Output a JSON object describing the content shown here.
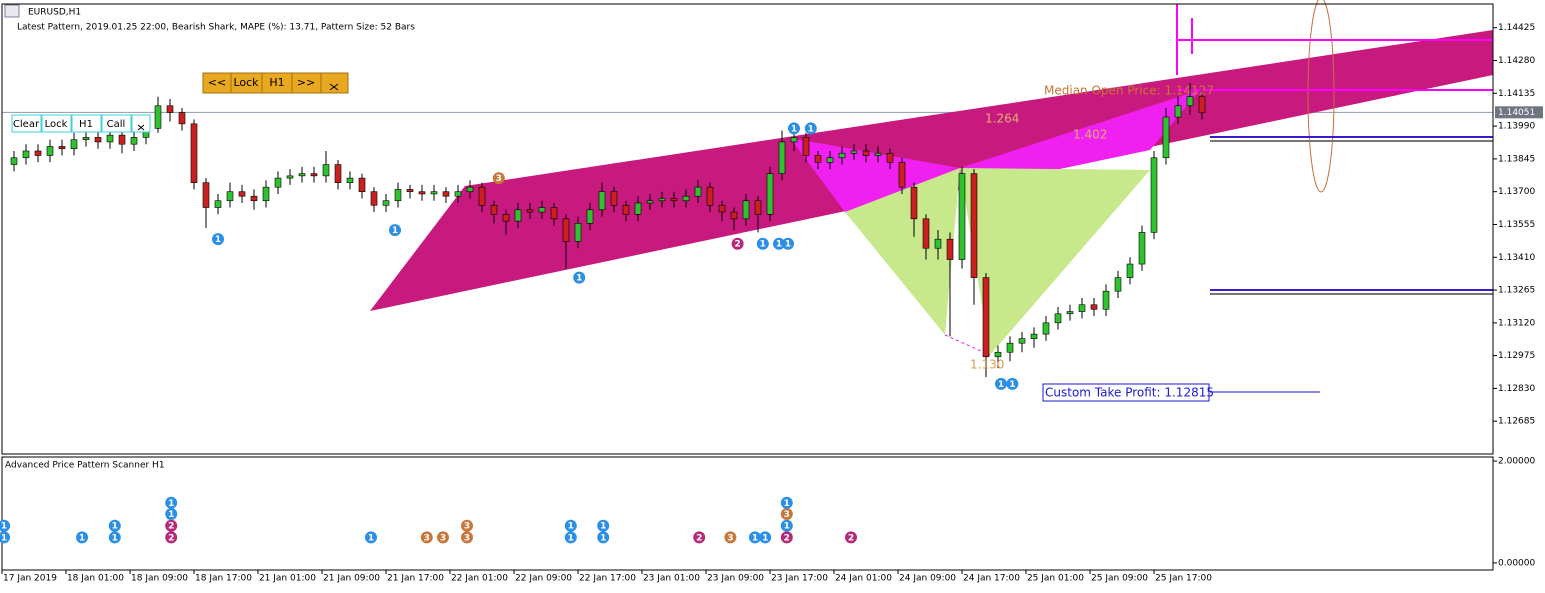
{
  "chart_data": {
    "type": "candlestick",
    "title": "EURUSD,H1",
    "subtitle": "Latest Pattern, 2019.01.25 22:00, Bearish Shark, MAPE (%): 13.71, Pattern Size: 52 Bars",
    "open": [
      1.1382,
      1.1385,
      1.1388,
      1.1386,
      1.139,
      1.1389,
      1.1393,
      1.1394,
      1.1392,
      1.1395,
      1.1391,
      1.1394,
      1.1398,
      1.1408,
      1.1405,
      1.14,
      1.1374,
      1.1363,
      1.1366,
      1.137,
      1.1368,
      1.1366,
      1.1372,
      1.1376,
      1.1377,
      1.1378,
      1.1377,
      1.1382,
      1.1374,
      1.1376,
      1.137,
      1.1364,
      1.1366,
      1.1371,
      1.137,
      1.1369,
      1.137,
      1.1368,
      1.137,
      1.1372,
      1.1364,
      1.136,
      1.1357,
      1.1362,
      1.1361,
      1.1363,
      1.1358,
      1.1348,
      1.1356,
      1.1362,
      1.137,
      1.1364,
      1.136,
      1.1365,
      1.1366,
      1.1367,
      1.1366,
      1.1368,
      1.1372,
      1.1364,
      1.1361,
      1.1358,
      1.1366,
      1.136,
      1.1378,
      1.1392,
      1.1394,
      1.1386,
      1.1383,
      1.1385,
      1.1387,
      1.1388,
      1.1386,
      1.1387,
      1.1383,
      1.1372,
      1.1358,
      1.1345,
      1.1349,
      1.134,
      1.1378,
      1.1332,
      1.1297,
      1.1299,
      1.1303,
      1.1305,
      1.1307,
      1.1312,
      1.1316,
      1.1317,
      1.132,
      1.1318,
      1.1326,
      1.1332,
      1.1338,
      1.1352,
      1.1385,
      1.1403,
      1.1408,
      1.1412
    ],
    "high": [
      1.1388,
      1.1391,
      1.1391,
      1.1393,
      1.1393,
      1.1396,
      1.1397,
      1.1397,
      1.1398,
      1.1398,
      1.1397,
      1.1402,
      1.1412,
      1.1411,
      1.1407,
      1.1402,
      1.1376,
      1.1369,
      1.1374,
      1.1373,
      1.1371,
      1.1375,
      1.1379,
      1.138,
      1.1381,
      1.1381,
      1.1388,
      1.1384,
      1.1379,
      1.1378,
      1.1372,
      1.1369,
      1.1374,
      1.1373,
      1.1373,
      1.1373,
      1.1372,
      1.1373,
      1.1375,
      1.1374,
      1.1366,
      1.1362,
      1.1365,
      1.1365,
      1.1366,
      1.1365,
      1.136,
      1.1359,
      1.1365,
      1.1374,
      1.1372,
      1.1366,
      1.1368,
      1.1369,
      1.137,
      1.137,
      1.1371,
      1.1375,
      1.1374,
      1.1366,
      1.1363,
      1.1369,
      1.1368,
      1.1381,
      1.1397,
      1.1397,
      1.1396,
      1.1388,
      1.1388,
      1.139,
      1.1391,
      1.1391,
      1.139,
      1.1389,
      1.1385,
      1.1374,
      1.136,
      1.1353,
      1.1352,
      1.1381,
      1.138,
      1.1334,
      1.1302,
      1.1306,
      1.1308,
      1.131,
      1.1315,
      1.1319,
      1.132,
      1.1323,
      1.1323,
      1.1329,
      1.1335,
      1.1341,
      1.1355,
      1.1388,
      1.1407,
      1.1412,
      1.1418,
      1.1415
    ],
    "low": [
      1.1379,
      1.1382,
      1.1383,
      1.1383,
      1.1386,
      1.1386,
      1.139,
      1.1389,
      1.1389,
      1.1387,
      1.1388,
      1.1391,
      1.1396,
      1.1401,
      1.1397,
      1.1371,
      1.1354,
      1.136,
      1.1363,
      1.1365,
      1.1362,
      1.1363,
      1.1369,
      1.1373,
      1.1374,
      1.1374,
      1.1374,
      1.1371,
      1.1371,
      1.1367,
      1.1361,
      1.1361,
      1.1363,
      1.1367,
      1.1366,
      1.1366,
      1.1365,
      1.1365,
      1.1367,
      1.1361,
      1.1356,
      1.1351,
      1.1354,
      1.1358,
      1.1358,
      1.1355,
      1.1336,
      1.1345,
      1.1353,
      1.1359,
      1.1361,
      1.1357,
      1.1357,
      1.1362,
      1.1363,
      1.1363,
      1.1363,
      1.1365,
      1.1361,
      1.1357,
      1.1353,
      1.1355,
      1.1352,
      1.1357,
      1.1375,
      1.1388,
      1.1383,
      1.138,
      1.138,
      1.1382,
      1.1384,
      1.1383,
      1.1383,
      1.138,
      1.1369,
      1.135,
      1.134,
      1.134,
      1.1306,
      1.1336,
      1.132,
      1.1288,
      1.1292,
      1.1295,
      1.1299,
      1.1301,
      1.1304,
      1.1309,
      1.1313,
      1.1314,
      1.1315,
      1.1315,
      1.1323,
      1.1329,
      1.1335,
      1.1349,
      1.1382,
      1.14,
      1.1404,
      1.1402
    ],
    "close": [
      1.1385,
      1.1388,
      1.1386,
      1.139,
      1.1389,
      1.1393,
      1.1394,
      1.1392,
      1.1395,
      1.1391,
      1.1394,
      1.1398,
      1.1408,
      1.1405,
      1.14,
      1.1374,
      1.1363,
      1.1366,
      1.137,
      1.1368,
      1.1366,
      1.1372,
      1.1376,
      1.1377,
      1.1378,
      1.1377,
      1.1382,
      1.1374,
      1.1376,
      1.137,
      1.1364,
      1.1366,
      1.1371,
      1.137,
      1.1369,
      1.137,
      1.1368,
      1.137,
      1.1372,
      1.1364,
      1.136,
      1.1357,
      1.1362,
      1.1361,
      1.1363,
      1.1358,
      1.1348,
      1.1356,
      1.1362,
      1.137,
      1.1364,
      1.136,
      1.1365,
      1.1366,
      1.1367,
      1.1366,
      1.1368,
      1.1372,
      1.1364,
      1.1361,
      1.1358,
      1.1366,
      1.136,
      1.1378,
      1.1392,
      1.1394,
      1.1386,
      1.1383,
      1.1385,
      1.1387,
      1.1388,
      1.1386,
      1.1387,
      1.1383,
      1.1372,
      1.1358,
      1.1345,
      1.1349,
      1.134,
      1.1378,
      1.1332,
      1.1297,
      1.1299,
      1.1303,
      1.1305,
      1.1307,
      1.1312,
      1.1316,
      1.1317,
      1.132,
      1.1318,
      1.1326,
      1.1332,
      1.1338,
      1.1352,
      1.1385,
      1.1403,
      1.1408,
      1.1412,
      1.1405
    ],
    "up_color": "#2fc22f",
    "down_color": "#cc1f1f",
    "xlim": [
      0,
      124.25
    ],
    "xticks": [
      {
        "value": 0,
        "label": "17 Jan 2019"
      },
      {
        "value": 5.33,
        "label": "18 Jan 01:00"
      },
      {
        "value": 10.67,
        "label": "18 Jan 09:00"
      },
      {
        "value": 16,
        "label": "18 Jan 17:00"
      },
      {
        "value": 21.33,
        "label": "21 Jan 01:00"
      },
      {
        "value": 26.67,
        "label": "21 Jan 09:00"
      },
      {
        "value": 32,
        "label": "21 Jan 17:00"
      },
      {
        "value": 37.33,
        "label": "22 Jan 01:00"
      },
      {
        "value": 42.67,
        "label": "22 Jan 09:00"
      },
      {
        "value": 48,
        "label": "22 Jan 17:00"
      },
      {
        "value": 53.33,
        "label": "23 Jan 01:00"
      },
      {
        "value": 58.67,
        "label": "23 Jan 09:00"
      },
      {
        "value": 64,
        "label": "23 Jan 17:00"
      },
      {
        "value": 69.33,
        "label": "24 Jan 01:00"
      },
      {
        "value": 74.67,
        "label": "24 Jan 09:00"
      },
      {
        "value": 80,
        "label": "24 Jan 17:00"
      },
      {
        "value": 85.33,
        "label": "25 Jan 01:00"
      },
      {
        "value": 90.67,
        "label": "25 Jan 09:00"
      },
      {
        "value": 96,
        "label": "25 Jan 17:00"
      }
    ],
    "ylim": [
      1.1254,
      1.1453
    ],
    "yticks": [
      1.14425,
      {
        "value": 1.1428,
        "label": "1.14280"
      },
      1.14135,
      {
        "value": 1.1399,
        "label": "1.13990"
      },
      1.13845,
      {
        "value": 1.137,
        "label": "1.13700"
      },
      1.13555,
      {
        "value": 1.1341,
        "label": "1.13410"
      },
      1.13265,
      {
        "value": 1.1312,
        "label": "1.13120"
      },
      1.12975,
      {
        "value": 1.1283,
        "label": "1.12830"
      },
      1.12685
    ],
    "current_price": 1.14051,
    "marker_colors": {
      "1": "#2b8fe6",
      "2": "#b42a7a",
      "3": "#c9763a"
    },
    "markers": [
      {
        "bar": 18,
        "price": 1.1349,
        "label": "1"
      },
      {
        "bar": 32.75,
        "price": 1.1353,
        "label": "1"
      },
      {
        "bar": 41.4,
        "price": 1.1376,
        "label": "3"
      },
      {
        "bar": 48.1,
        "price": 1.1332,
        "label": "1"
      },
      {
        "bar": 61.3,
        "price": 1.1347,
        "label": "2"
      },
      {
        "bar": 63.4,
        "price": 1.1347,
        "label": "1"
      },
      {
        "bar": 64.75,
        "price": 1.1347,
        "label": "1"
      },
      {
        "bar": 65.5,
        "price": 1.1347,
        "label": "1"
      },
      {
        "bar": 66,
        "price": 1.1398,
        "label": "1"
      },
      {
        "bar": 67.4,
        "price": 1.1398,
        "label": "1"
      },
      {
        "bar": 83.25,
        "price": 1.1285,
        "label": "1"
      },
      {
        "bar": 84.2,
        "price": 1.1285,
        "label": "1"
      }
    ],
    "median_open_price": "Median Open Price: 1.14127",
    "ratio_labels": [
      "1.264",
      "1.402",
      "1.130"
    ],
    "take_profit": "Custom Take Profit: 1.12815",
    "indicator": {
      "title": "Advanced Price Pattern Scanner H1",
      "ylim": [
        -0.14,
        2.08
      ],
      "yticks": [
        {
          "value": 2,
          "label": "2.00000"
        },
        {
          "value": 0,
          "label": "0.00000"
        }
      ],
      "markers": [
        {
          "bar": 0.17,
          "value": 0.5,
          "label": "1"
        },
        {
          "bar": 0.17,
          "value": 0.73,
          "label": "1"
        },
        {
          "bar": 6.67,
          "value": 0.5,
          "label": "1"
        },
        {
          "bar": 9.4,
          "value": 0.5,
          "label": "1"
        },
        {
          "bar": 9.4,
          "value": 0.73,
          "label": "1"
        },
        {
          "bar": 14.1,
          "value": 0.5,
          "label": "2"
        },
        {
          "bar": 14.1,
          "value": 0.73,
          "label": "2"
        },
        {
          "bar": 14.1,
          "value": 0.96,
          "label": "1"
        },
        {
          "bar": 14.1,
          "value": 1.18,
          "label": "1"
        },
        {
          "bar": 30.75,
          "value": 0.5,
          "label": "1"
        },
        {
          "bar": 35.4,
          "value": 0.5,
          "label": "3"
        },
        {
          "bar": 36.75,
          "value": 0.5,
          "label": "3"
        },
        {
          "bar": 38.75,
          "value": 0.5,
          "label": "3"
        },
        {
          "bar": 38.75,
          "value": 0.73,
          "label": "3"
        },
        {
          "bar": 47.4,
          "value": 0.5,
          "label": "1"
        },
        {
          "bar": 47.4,
          "value": 0.73,
          "label": "1"
        },
        {
          "bar": 50.1,
          "value": 0.5,
          "label": "1"
        },
        {
          "bar": 50.1,
          "value": 0.73,
          "label": "1"
        },
        {
          "bar": 58.1,
          "value": 0.5,
          "label": "2"
        },
        {
          "bar": 60.7,
          "value": 0.5,
          "label": "3"
        },
        {
          "bar": 62.75,
          "value": 0.5,
          "label": "1"
        },
        {
          "bar": 63.6,
          "value": 0.5,
          "label": "1"
        },
        {
          "bar": 65.4,
          "value": 0.5,
          "label": "2"
        },
        {
          "bar": 65.4,
          "value": 0.73,
          "label": "1"
        },
        {
          "bar": 65.4,
          "value": 0.96,
          "label": "3"
        },
        {
          "bar": 65.4,
          "value": 1.18,
          "label": "1"
        },
        {
          "bar": 70.75,
          "value": 0.5,
          "label": "2"
        }
      ]
    }
  },
  "toolbar": {
    "nav_buttons": [
      "<<",
      "Lock",
      "H1",
      ">>"
    ],
    "panel_buttons": [
      "Clear",
      "Lock",
      "H1",
      "Call"
    ]
  }
}
